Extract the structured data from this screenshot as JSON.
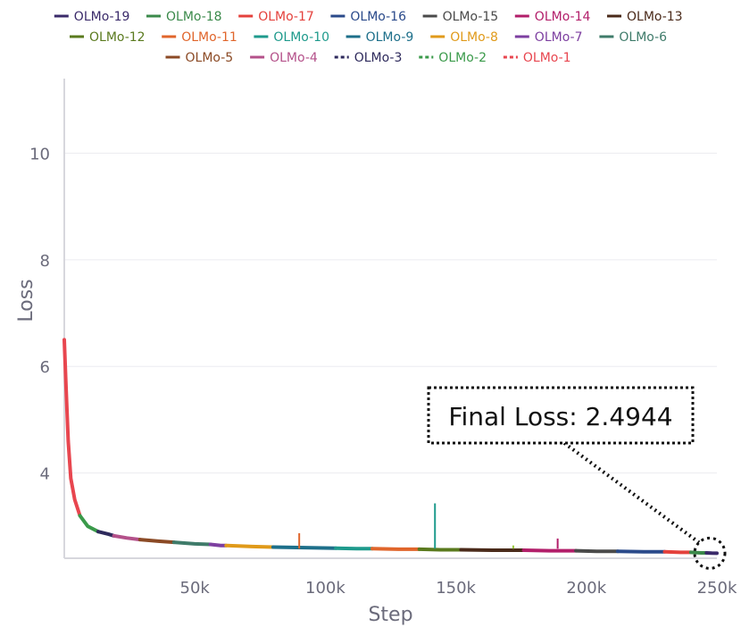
{
  "chart_data": {
    "type": "line",
    "title": "",
    "xlabel": "Step",
    "ylabel": "Loss",
    "xlim": [
      0,
      250000
    ],
    "ylim": [
      2.4,
      11.4
    ],
    "x_ticks": [
      50000,
      100000,
      150000,
      200000,
      250000
    ],
    "x_tick_labels": [
      "50k",
      "100k",
      "150k",
      "200k",
      "250k"
    ],
    "y_ticks": [
      4,
      6,
      8,
      10
    ],
    "y_tick_labels": [
      "4",
      "6",
      "8",
      "10"
    ],
    "grid": "horizontal",
    "legend_placement": "top",
    "annotation": {
      "text": "Final Loss: 2.4944",
      "x": 250000,
      "y": 2.4944
    },
    "series": [
      {
        "name": "OLMo-1",
        "color": "#e8464f",
        "dashed": true,
        "x": [
          0,
          700,
          1500,
          2500,
          4000,
          6000
        ],
        "y": [
          6.5,
          5.6,
          4.6,
          3.9,
          3.5,
          3.2
        ]
      },
      {
        "name": "OLMo-2",
        "color": "#3a9a4a",
        "dashed": true,
        "x": [
          6000,
          9000,
          13000
        ],
        "y": [
          3.2,
          3.0,
          2.9
        ]
      },
      {
        "name": "OLMo-3",
        "color": "#2e2a5c",
        "dashed": true,
        "x": [
          13000,
          17000,
          19000
        ],
        "y": [
          2.9,
          2.85,
          2.82
        ]
      },
      {
        "name": "OLMo-4",
        "color": "#b4518a",
        "dashed": false,
        "x": [
          19000,
          24000,
          29000
        ],
        "y": [
          2.82,
          2.78,
          2.75
        ]
      },
      {
        "name": "OLMo-5",
        "color": "#8b4a25",
        "dashed": false,
        "x": [
          29000,
          36000,
          42000
        ],
        "y": [
          2.75,
          2.72,
          2.7
        ]
      },
      {
        "name": "OLMo-6",
        "color": "#3f7b6a",
        "dashed": false,
        "x": [
          42000,
          50000,
          56000
        ],
        "y": [
          2.7,
          2.67,
          2.66
        ]
      },
      {
        "name": "OLMo-7",
        "color": "#7d3fa0",
        "dashed": false,
        "x": [
          56000,
          60000,
          62000
        ],
        "y": [
          2.66,
          2.64,
          2.64
        ]
      },
      {
        "name": "OLMo-8",
        "color": "#e09a1a",
        "dashed": false,
        "x": [
          62000,
          72000,
          80000
        ],
        "y": [
          2.64,
          2.62,
          2.61
        ]
      },
      {
        "name": "OLMo-9",
        "color": "#1d6f8a",
        "dashed": false,
        "x": [
          80000,
          92000,
          104000
        ],
        "y": [
          2.61,
          2.6,
          2.59
        ]
      },
      {
        "name": "OLMo-10",
        "color": "#1e9a8c",
        "dashed": false,
        "x": [
          104000,
          112000,
          118000
        ],
        "y": [
          2.59,
          2.58,
          2.58
        ]
      },
      {
        "name": "OLMo-11",
        "color": "#e0652b",
        "dashed": false,
        "x": [
          118000,
          128000,
          136000
        ],
        "y": [
          2.58,
          2.57,
          2.57
        ]
      },
      {
        "name": "OLMo-12",
        "color": "#5a7a1e",
        "dashed": false,
        "x": [
          136000,
          144000,
          152000
        ],
        "y": [
          2.57,
          2.56,
          2.56
        ]
      },
      {
        "name": "OLMo-13",
        "color": "#4a2a1a",
        "dashed": false,
        "x": [
          152000,
          164000,
          176000
        ],
        "y": [
          2.56,
          2.55,
          2.55
        ]
      },
      {
        "name": "OLMo-14",
        "color": "#b21e6a",
        "dashed": false,
        "x": [
          176000,
          186000,
          196000
        ],
        "y": [
          2.55,
          2.54,
          2.54
        ]
      },
      {
        "name": "OLMo-15",
        "color": "#4a4a4a",
        "dashed": false,
        "x": [
          196000,
          204000,
          212000
        ],
        "y": [
          2.54,
          2.53,
          2.53
        ]
      },
      {
        "name": "OLMo-16",
        "color": "#2a4a8a",
        "dashed": false,
        "x": [
          212000,
          222000,
          230000
        ],
        "y": [
          2.53,
          2.52,
          2.52
        ]
      },
      {
        "name": "OLMo-17",
        "color": "#e4413c",
        "dashed": false,
        "x": [
          230000,
          236000,
          240000
        ],
        "y": [
          2.52,
          2.51,
          2.51
        ]
      },
      {
        "name": "OLMo-18",
        "color": "#3b8a4b",
        "dashed": false,
        "x": [
          240000,
          244000,
          246000
        ],
        "y": [
          2.51,
          2.5,
          2.5
        ]
      },
      {
        "name": "OLMo-19",
        "color": "#3a2a6a",
        "dashed": false,
        "x": [
          246000,
          248000,
          250000
        ],
        "y": [
          2.5,
          2.495,
          2.4944
        ]
      }
    ],
    "spikes": [
      {
        "x": 90000,
        "y": 2.87,
        "color": "#e0652b"
      },
      {
        "x": 142000,
        "y": 3.43,
        "color": "#1e9a8c"
      },
      {
        "x": 172000,
        "y": 2.64,
        "color": "#9acb3c"
      },
      {
        "x": 189000,
        "y": 2.77,
        "color": "#b21e6a"
      }
    ],
    "legend_rows": [
      [
        "OLMo-19",
        "OLMo-18",
        "OLMo-17",
        "OLMo-16",
        "OLMo-15",
        "OLMo-14",
        "OLMo-13"
      ],
      [
        "OLMo-12",
        "OLMo-11",
        "OLMo-10",
        "OLMo-9",
        "OLMo-8",
        "OLMo-7",
        "OLMo-6"
      ],
      [
        "OLMo-5",
        "OLMo-4",
        "OLMo-3",
        "OLMo-2",
        "OLMo-1"
      ]
    ]
  }
}
